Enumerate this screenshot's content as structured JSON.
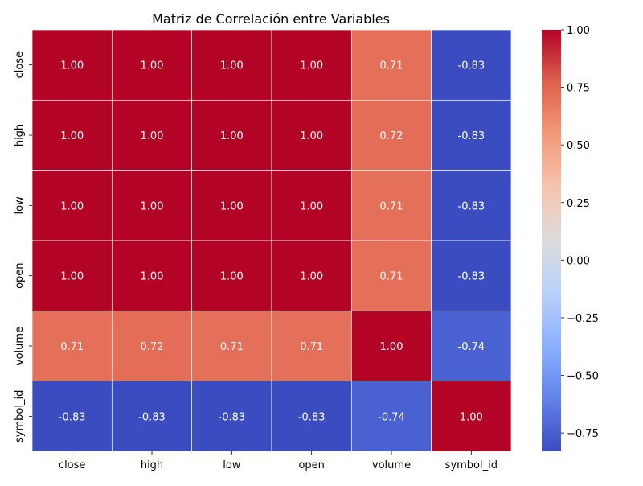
{
  "chart_data": {
    "type": "heatmap",
    "title": "Matriz de Correlación entre Variables",
    "xlabel": "",
    "ylabel": "",
    "x_categories": [
      "close",
      "high",
      "low",
      "open",
      "volume",
      "symbol_id"
    ],
    "y_categories": [
      "close",
      "high",
      "low",
      "open",
      "volume",
      "symbol_id"
    ],
    "values": [
      [
        1.0,
        1.0,
        1.0,
        1.0,
        0.71,
        -0.83
      ],
      [
        1.0,
        1.0,
        1.0,
        1.0,
        0.72,
        -0.83
      ],
      [
        1.0,
        1.0,
        1.0,
        1.0,
        0.71,
        -0.83
      ],
      [
        1.0,
        1.0,
        1.0,
        1.0,
        0.71,
        -0.83
      ],
      [
        0.71,
        0.72,
        0.71,
        0.71,
        1.0,
        -0.74
      ],
      [
        -0.83,
        -0.83,
        -0.83,
        -0.83,
        -0.74,
        1.0
      ]
    ],
    "cell_labels": [
      [
        "1.00",
        "1.00",
        "1.00",
        "1.00",
        "0.71",
        "-0.83"
      ],
      [
        "1.00",
        "1.00",
        "1.00",
        "1.00",
        "0.72",
        "-0.83"
      ],
      [
        "1.00",
        "1.00",
        "1.00",
        "1.00",
        "0.71",
        "-0.83"
      ],
      [
        "1.00",
        "1.00",
        "1.00",
        "1.00",
        "0.71",
        "-0.83"
      ],
      [
        "0.71",
        "0.72",
        "0.71",
        "0.71",
        "1.00",
        "-0.74"
      ],
      [
        "-0.83",
        "-0.83",
        "-0.83",
        "-0.83",
        "-0.74",
        "1.00"
      ]
    ],
    "colormap": "coolwarm",
    "color_range": [
      -0.83,
      1.0
    ],
    "colorbar_ticks": [
      -0.75,
      -0.5,
      -0.25,
      0.0,
      0.25,
      0.5,
      0.75,
      1.0
    ],
    "colorbar_tick_labels": [
      "−0.75",
      "−0.50",
      "−0.25",
      "0.00",
      "0.25",
      "0.50",
      "0.75",
      "1.00"
    ],
    "grid": false,
    "legend": "colorbar-right",
    "colors": {
      "cell_border": "#ffffff",
      "annotation_text": "#ffffff",
      "axis_text": "#000000"
    }
  }
}
